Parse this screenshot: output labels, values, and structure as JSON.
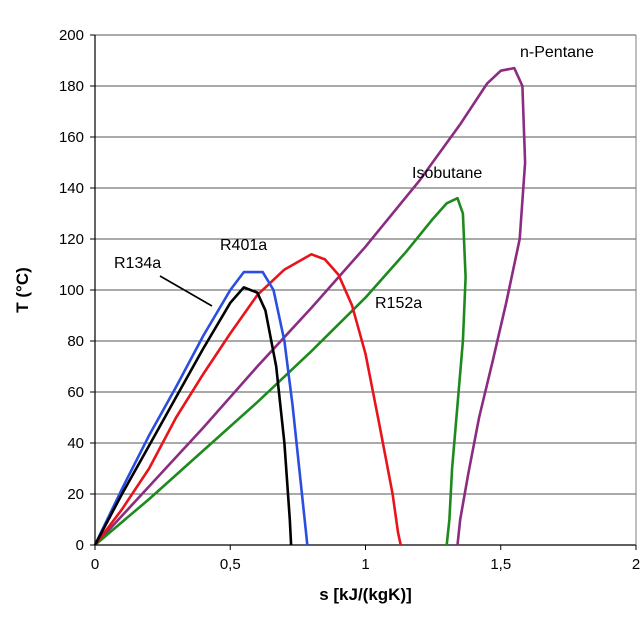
{
  "chart_data": {
    "type": "line",
    "title": "",
    "xlabel": "s [kJ/(kgK)]",
    "ylabel": "T (°C)",
    "xlim": [
      0,
      2
    ],
    "ylim": [
      0,
      200
    ],
    "x_ticks": [
      0,
      0.5,
      1,
      1.5,
      2
    ],
    "x_tick_labels": [
      "0",
      "0,5",
      "1",
      "1,5",
      "2"
    ],
    "y_ticks": [
      0,
      20,
      40,
      60,
      80,
      100,
      120,
      140,
      160,
      180,
      200
    ],
    "y_tick_labels": [
      "0",
      "20",
      "40",
      "60",
      "80",
      "100",
      "120",
      "140",
      "160",
      "180",
      "200"
    ],
    "grid": "horizontal",
    "legend": "none",
    "series": [
      {
        "name": "n-Pentane",
        "color": "#8b2c82",
        "x": [
          0.0,
          0.2,
          0.4,
          0.6,
          0.8,
          1.0,
          1.2,
          1.35,
          1.45,
          1.5,
          1.55,
          1.58,
          1.59,
          1.57,
          1.52,
          1.47,
          1.42,
          1.38,
          1.35,
          1.34
        ],
        "y": [
          0,
          23,
          46,
          70,
          93,
          117,
          143,
          165,
          181,
          186,
          187,
          180,
          150,
          120,
          95,
          72,
          50,
          28,
          10,
          0
        ]
      },
      {
        "name": "Isobutane",
        "color": "#1e8a1e",
        "x": [
          0.0,
          0.2,
          0.4,
          0.6,
          0.8,
          1.0,
          1.15,
          1.25,
          1.3,
          1.34,
          1.36,
          1.37,
          1.36,
          1.34,
          1.32,
          1.31,
          1.3
        ],
        "y": [
          0,
          18,
          37,
          56,
          76,
          97,
          115,
          128,
          134,
          136,
          130,
          105,
          80,
          55,
          30,
          10,
          0
        ]
      },
      {
        "name": "R152a",
        "color": "#e8141c",
        "x": [
          0.0,
          0.1,
          0.2,
          0.3,
          0.4,
          0.5,
          0.6,
          0.7,
          0.8,
          0.85,
          0.9,
          0.95,
          1.0,
          1.05,
          1.1,
          1.12,
          1.13
        ],
        "y": [
          0,
          14,
          30,
          50,
          67,
          83,
          98,
          108,
          114,
          112,
          106,
          94,
          75,
          48,
          20,
          5,
          0
        ]
      },
      {
        "name": "R401a",
        "color": "#2a4fe0",
        "x": [
          0.0,
          0.1,
          0.2,
          0.3,
          0.4,
          0.5,
          0.55,
          0.62,
          0.66,
          0.7,
          0.73,
          0.76,
          0.78,
          0.785
        ],
        "y": [
          0,
          22,
          43,
          62,
          82,
          100,
          107,
          107,
          100,
          80,
          55,
          25,
          5,
          0
        ]
      },
      {
        "name": "R134a",
        "color": "#000000",
        "x": [
          0.0,
          0.1,
          0.2,
          0.3,
          0.4,
          0.5,
          0.55,
          0.6,
          0.63,
          0.67,
          0.7,
          0.72,
          0.725
        ],
        "y": [
          0,
          20,
          39,
          58,
          77,
          95,
          101,
          99,
          92,
          70,
          40,
          10,
          0
        ]
      }
    ],
    "annotations": [
      {
        "text": "n-Pentane",
        "series": "n-Pentane"
      },
      {
        "text": "Isobutane",
        "series": "Isobutane"
      },
      {
        "text": "R152a",
        "series": "R152a"
      },
      {
        "text": "R401a",
        "series": "R401a"
      },
      {
        "text": "R134a",
        "series": "R134a"
      }
    ]
  }
}
